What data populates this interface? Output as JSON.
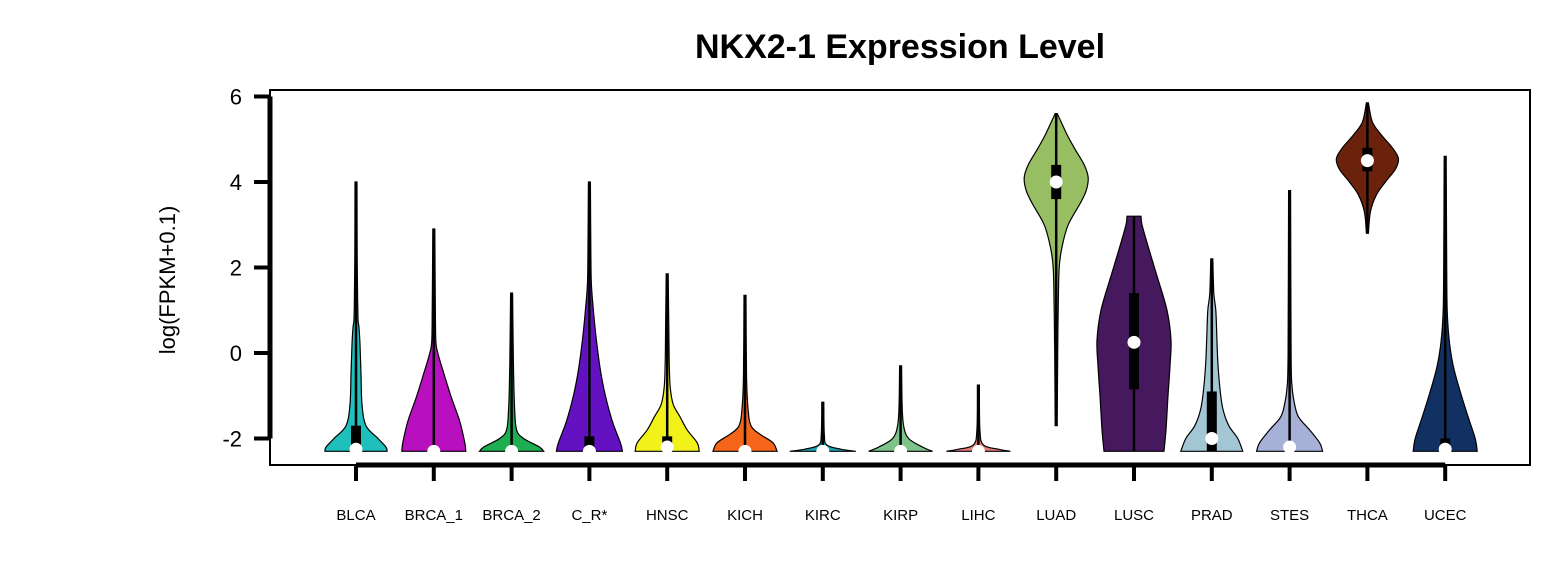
{
  "chart_data": {
    "type": "violin",
    "title": "NKX2-1 Expression Level",
    "xlabel": "",
    "ylabel": "log(FPKM+0.1)",
    "ylim": [
      -2.6,
      6.2
    ],
    "yticks": [
      -2,
      0,
      2,
      4,
      6
    ],
    "ytick_labels": [
      "-2",
      "0",
      "2",
      "4",
      "6"
    ],
    "grid": false,
    "legend": "none",
    "series": [
      {
        "category": "BLCA",
        "color": "#1fbfbb",
        "whisker": [
          -2.3,
          4.0
        ],
        "box": [
          -2.3,
          -1.7
        ],
        "median": -2.25
      },
      {
        "category": "BRCA_1",
        "color": "#b80fbf",
        "whisker": [
          -2.3,
          2.9
        ],
        "box": [
          -2.3,
          -2.3
        ],
        "median": -2.3
      },
      {
        "category": "BRCA_2",
        "color": "#1fad52",
        "whisker": [
          -2.3,
          1.4
        ],
        "box": [
          -2.3,
          -2.3
        ],
        "median": -2.3
      },
      {
        "category": "C_R*",
        "color": "#6411c2",
        "whisker": [
          -2.3,
          4.0
        ],
        "box": [
          -2.3,
          -1.95
        ],
        "median": -2.3
      },
      {
        "category": "HNSC",
        "color": "#f2f21a",
        "whisker": [
          -2.3,
          1.85
        ],
        "box": [
          -2.3,
          -1.95
        ],
        "median": -2.2
      },
      {
        "category": "KICH",
        "color": "#f5661a",
        "whisker": [
          -2.3,
          1.35
        ],
        "box": [
          -2.3,
          -2.3
        ],
        "median": -2.3
      },
      {
        "category": "KIRC",
        "color": "#1aa6b5",
        "whisker": [
          -2.3,
          -1.15
        ],
        "box": [
          -2.3,
          -2.3
        ],
        "median": -2.3
      },
      {
        "category": "KIRP",
        "color": "#7ec48a",
        "whisker": [
          -2.3,
          -0.3
        ],
        "box": [
          -2.3,
          -2.3
        ],
        "median": -2.3
      },
      {
        "category": "LIHC",
        "color": "#e87a7a",
        "whisker": [
          -2.3,
          -0.75
        ],
        "box": [
          -2.3,
          -2.3
        ],
        "median": -2.3
      },
      {
        "category": "LUAD",
        "color": "#98be63",
        "whisker": [
          -1.7,
          5.6
        ],
        "box": [
          3.6,
          4.4
        ],
        "median": 4.0
      },
      {
        "category": "LUSC",
        "color": "#46195f",
        "whisker": [
          -2.3,
          3.2
        ],
        "box": [
          -0.85,
          1.4
        ],
        "median": 0.25
      },
      {
        "category": "PRAD",
        "color": "#a2c6d3",
        "whisker": [
          -2.3,
          2.2
        ],
        "box": [
          -2.3,
          -0.9
        ],
        "median": -2.0
      },
      {
        "category": "STES",
        "color": "#a7b0d6",
        "whisker": [
          -2.3,
          3.8
        ],
        "box": [
          -2.3,
          -2.1
        ],
        "median": -2.2
      },
      {
        "category": "THCA",
        "color": "#6b220c",
        "whisker": [
          2.8,
          5.85
        ],
        "box": [
          4.25,
          4.8
        ],
        "median": 4.5
      },
      {
        "category": "UCEC",
        "color": "#123163",
        "whisker": [
          -2.3,
          4.6
        ],
        "box": [
          -2.3,
          -2.0
        ],
        "median": -2.25
      }
    ]
  }
}
